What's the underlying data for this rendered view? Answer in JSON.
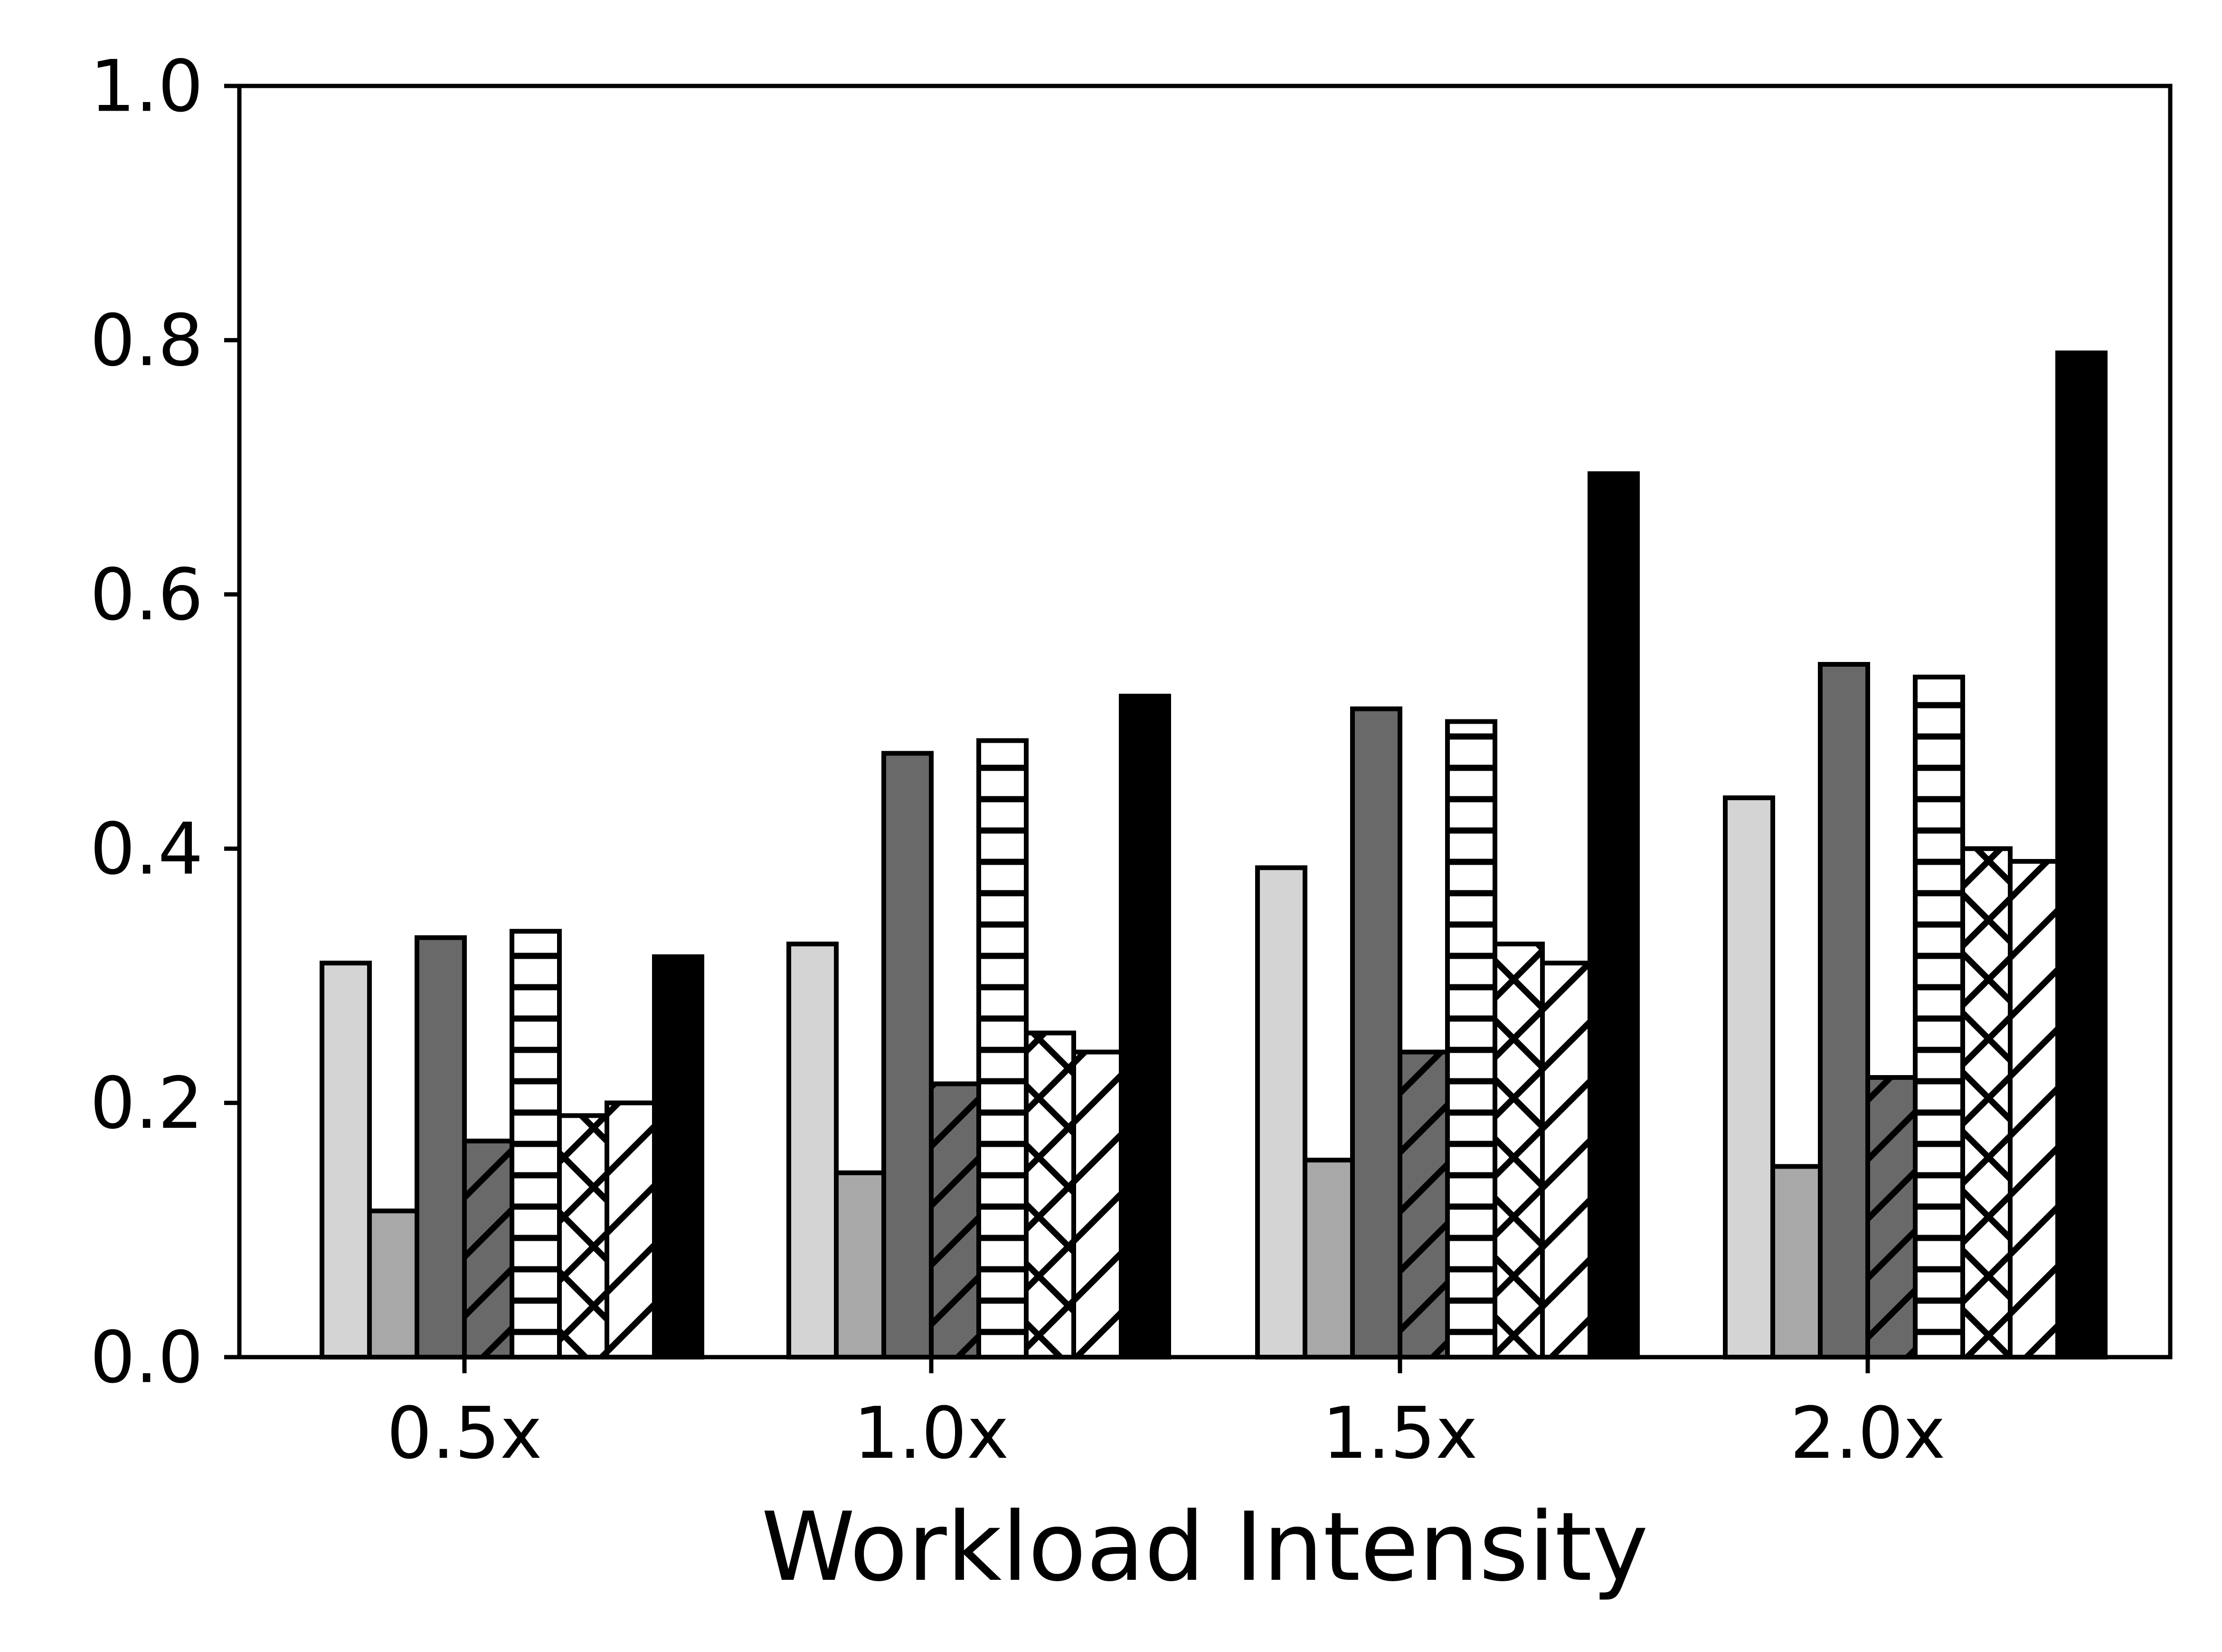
{
  "chart_data": {
    "type": "bar",
    "title": "",
    "xlabel": "Workload Intensity",
    "ylabel": "",
    "categories": [
      "0.5x",
      "1.0x",
      "1.5x",
      "2.0x"
    ],
    "ylim": [
      0.0,
      1.0
    ],
    "yticks": [
      "0.0",
      "0.2",
      "0.4",
      "0.6",
      "0.8",
      "1.0"
    ],
    "grid": false,
    "legend": "none",
    "background_color": "#ffffff",
    "axis_color": "#000000",
    "bar_edge_color": "#000000",
    "series": [
      {
        "name": "light-gray-solid",
        "fill": "#d4d4d4",
        "hatch": "none",
        "values": [
          0.31,
          0.325,
          0.385,
          0.44
        ]
      },
      {
        "name": "medium-gray-solid",
        "fill": "#a8a8a8",
        "hatch": "none",
        "values": [
          0.115,
          0.145,
          0.155,
          0.15
        ]
      },
      {
        "name": "dark-gray-solid",
        "fill": "#696969",
        "hatch": "none",
        "values": [
          0.33,
          0.475,
          0.51,
          0.545
        ]
      },
      {
        "name": "dark-gray-diagonal",
        "fill": "#696969",
        "hatch": "/",
        "values": [
          0.17,
          0.215,
          0.24,
          0.22
        ]
      },
      {
        "name": "white-horizontal-lines",
        "fill": "#ffffff",
        "hatch": "-",
        "values": [
          0.335,
          0.485,
          0.5,
          0.535
        ]
      },
      {
        "name": "white-crosshatch",
        "fill": "#ffffff",
        "hatch": "x",
        "values": [
          0.19,
          0.255,
          0.325,
          0.4
        ]
      },
      {
        "name": "white-diagonal",
        "fill": "#ffffff",
        "hatch": "/",
        "values": [
          0.2,
          0.24,
          0.31,
          0.39
        ]
      },
      {
        "name": "black-solid",
        "fill": "#000000",
        "hatch": "none",
        "values": [
          0.315,
          0.52,
          0.695,
          0.79
        ]
      }
    ]
  }
}
